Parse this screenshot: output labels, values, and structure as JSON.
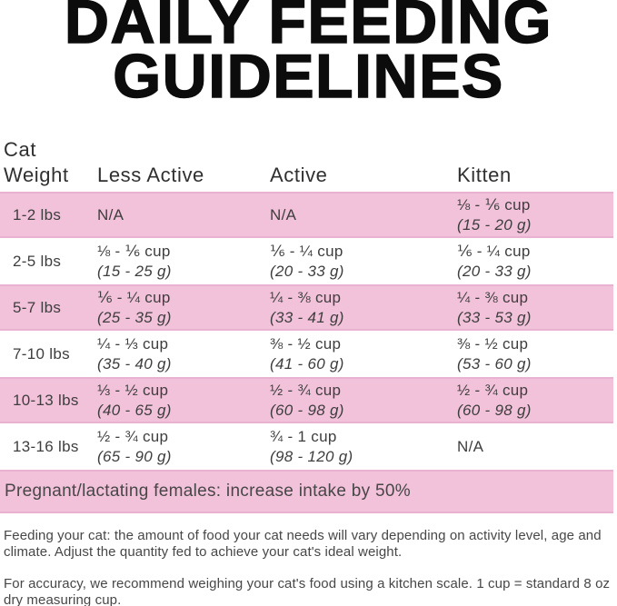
{
  "title": {
    "line1": "DAILY FEEDING",
    "line2": "GUIDELINES"
  },
  "colors": {
    "row_pink": "#f2c1da",
    "row_pink_edge": "#e9b2d0",
    "title_black": "#0c0c0c",
    "body_text_gray": "#3e3e3e"
  },
  "table": {
    "header": {
      "col1_line1": "Cat",
      "col1_line2": "Weight",
      "col2": "Less Active",
      "col3": "Active",
      "col4": "Kitten"
    },
    "rows": [
      {
        "weight": "1-2 lbs",
        "less_active": {
          "cups": "N/A",
          "grams": ""
        },
        "active": {
          "cups": "N/A",
          "grams": ""
        },
        "kitten": {
          "cups": "⅛ - ⅙ cup",
          "grams": "(15 - 20 g)"
        }
      },
      {
        "weight": "2-5 lbs",
        "less_active": {
          "cups": "⅛ - ⅙ cup",
          "grams": "(15 - 25 g)"
        },
        "active": {
          "cups": "⅙ - ¼ cup",
          "grams": "(20 - 33 g)"
        },
        "kitten": {
          "cups": "⅙ - ¼ cup",
          "grams": "(20 - 33 g)"
        }
      },
      {
        "weight": "5-7 lbs",
        "less_active": {
          "cups": "⅙ - ¼ cup",
          "grams": "(25 - 35 g)"
        },
        "active": {
          "cups": "¼ - ⅜ cup",
          "grams": "(33 - 41 g)"
        },
        "kitten": {
          "cups": "¼ - ⅜ cup",
          "grams": "(33 - 53 g)"
        }
      },
      {
        "weight": "7-10 lbs",
        "less_active": {
          "cups": "¼ - ⅓ cup",
          "grams": "(35 - 40 g)"
        },
        "active": {
          "cups": "⅜ - ½ cup",
          "grams": "(41 - 60 g)"
        },
        "kitten": {
          "cups": "⅜ - ½ cup",
          "grams": "(53 - 60 g)"
        }
      },
      {
        "weight": "10-13 lbs",
        "less_active": {
          "cups": "⅓ - ½ cup",
          "grams": "(40 - 65 g)"
        },
        "active": {
          "cups": "½ - ¾ cup",
          "grams": "(60 - 98 g)"
        },
        "kitten": {
          "cups": "½ - ¾ cup",
          "grams": "(60 - 98 g)"
        }
      },
      {
        "weight": "13-16 lbs",
        "less_active": {
          "cups": "½ - ¾ cup",
          "grams": "(65 - 90 g)"
        },
        "active": {
          "cups": "¾ - 1 cup",
          "grams": "(98 - 120 g)"
        },
        "kitten": {
          "cups": "N/A",
          "grams": ""
        }
      }
    ]
  },
  "pregnant_note": "Pregnant/lactating females: increase intake by 50%",
  "footnotes": [
    {
      "line1": "Feeding your cat: the amount of food your cat needs will vary depending on activity level, age and",
      "line2": "climate. Adjust the quantity fed to achieve your cat's ideal weight."
    },
    {
      "line1": "For accuracy, we recommend weighing your cat's food using a kitchen scale. 1 cup = standard 8 oz",
      "line2": "dry measuring cup."
    }
  ]
}
